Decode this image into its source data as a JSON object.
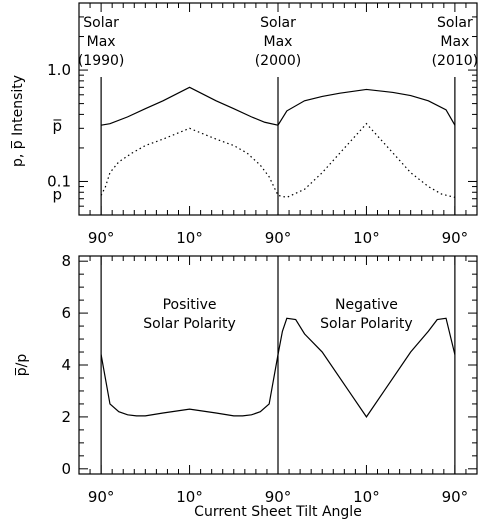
{
  "chart_data": [
    {
      "type": "line",
      "ylabel": "p, p̅ Intensity",
      "yscale": "log",
      "ylim": [
        0.05,
        4.0
      ],
      "yticks": [
        {
          "value": 0.1,
          "label": "0.1"
        },
        {
          "value": 1.0,
          "label": "1.0"
        }
      ],
      "xlim": [
        -0.25,
        4.25
      ],
      "xticks": [
        {
          "value": 0,
          "label": "90°"
        },
        {
          "value": 1,
          "label": "10°"
        },
        {
          "value": 2,
          "label": "90°"
        },
        {
          "value": 3,
          "label": "10°"
        },
        {
          "value": 4,
          "label": "90°"
        }
      ],
      "vlines": [
        0,
        2,
        4
      ],
      "annotations": [
        {
          "x": 0,
          "lines": [
            "Solar",
            "Max",
            "(1990)"
          ]
        },
        {
          "x": 2,
          "lines": [
            "Solar",
            "Max",
            "(2000)"
          ]
        },
        {
          "x": 4,
          "lines": [
            "Solar",
            "Max",
            "(2010)"
          ]
        }
      ],
      "series_labels": [
        {
          "series": "pbar",
          "label": "p̅"
        },
        {
          "series": "p",
          "label": "p"
        }
      ],
      "series": [
        {
          "key": "pbar",
          "style": "solid",
          "x": [
            0,
            0.1,
            0.3,
            0.5,
            0.7,
            1.0,
            1.3,
            1.5,
            1.7,
            1.85,
            2.0,
            2.1,
            2.3,
            2.5,
            2.7,
            3.0,
            3.3,
            3.5,
            3.7,
            3.9,
            4.0
          ],
          "y": [
            0.32,
            0.33,
            0.38,
            0.45,
            0.53,
            0.7,
            0.53,
            0.45,
            0.38,
            0.34,
            0.32,
            0.43,
            0.53,
            0.58,
            0.62,
            0.67,
            0.63,
            0.59,
            0.53,
            0.44,
            0.32
          ]
        },
        {
          "key": "p",
          "style": "dotted",
          "x": [
            0,
            0.05,
            0.1,
            0.2,
            0.35,
            0.5,
            0.7,
            1.0,
            1.3,
            1.5,
            1.65,
            1.8,
            1.9,
            2.0,
            2.1,
            2.3,
            2.5,
            2.7,
            3.0,
            3.3,
            3.5,
            3.7,
            3.85,
            4.0
          ],
          "y": [
            0.075,
            0.09,
            0.12,
            0.15,
            0.18,
            0.21,
            0.24,
            0.3,
            0.24,
            0.21,
            0.18,
            0.14,
            0.11,
            0.075,
            0.072,
            0.085,
            0.12,
            0.18,
            0.33,
            0.18,
            0.12,
            0.09,
            0.077,
            0.072
          ]
        }
      ]
    },
    {
      "type": "line",
      "ylabel": "p̅/p",
      "xlabel": "Current Sheet Tilt Angle",
      "ylim": [
        -0.2,
        8.2
      ],
      "yticks": [
        {
          "value": 0,
          "label": "0"
        },
        {
          "value": 2,
          "label": "2"
        },
        {
          "value": 4,
          "label": "4"
        },
        {
          "value": 6,
          "label": "6"
        },
        {
          "value": 8,
          "label": "8"
        }
      ],
      "xlim": [
        -0.25,
        4.25
      ],
      "xticks": [
        {
          "value": 0,
          "label": "90°"
        },
        {
          "value": 1,
          "label": "10°"
        },
        {
          "value": 2,
          "label": "90°"
        },
        {
          "value": 3,
          "label": "10°"
        },
        {
          "value": 4,
          "label": "90°"
        }
      ],
      "vlines": [
        0,
        2,
        4
      ],
      "annotations": [
        {
          "x": 1,
          "lines": [
            "Positive",
            "Solar Polarity"
          ]
        },
        {
          "x": 3,
          "lines": [
            "Negative",
            "Solar Polarity"
          ]
        }
      ],
      "series": [
        {
          "key": "ratio",
          "style": "solid",
          "x": [
            0,
            0.1,
            0.2,
            0.3,
            0.4,
            0.5,
            0.7,
            1.0,
            1.3,
            1.5,
            1.6,
            1.7,
            1.8,
            1.9,
            2.0,
            2.05,
            2.1,
            2.2,
            2.3,
            2.5,
            2.8,
            3.0,
            3.2,
            3.5,
            3.7,
            3.8,
            3.9,
            4.0
          ],
          "y": [
            4.4,
            2.5,
            2.2,
            2.08,
            2.04,
            2.04,
            2.15,
            2.3,
            2.15,
            2.04,
            2.04,
            2.08,
            2.2,
            2.5,
            4.4,
            5.3,
            5.8,
            5.75,
            5.2,
            4.5,
            3.0,
            2.0,
            3.0,
            4.5,
            5.3,
            5.75,
            5.8,
            4.4
          ]
        }
      ]
    }
  ]
}
